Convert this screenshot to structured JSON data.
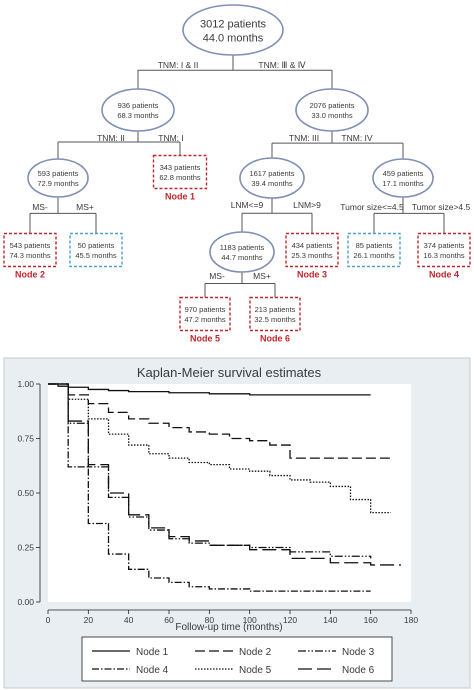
{
  "tree": {
    "nodes": [
      {
        "id": "root",
        "line1": "3012 patients",
        "line2": "44.0 months",
        "shape": "ellipse"
      },
      {
        "id": "n936",
        "line1": "936 patients",
        "line2": "68.3 months",
        "shape": "ellipse"
      },
      {
        "id": "n2076",
        "line1": "2076 patients",
        "line2": "33.0 months",
        "shape": "ellipse"
      },
      {
        "id": "n593",
        "line1": "593 patients",
        "line2": "72.9 months",
        "shape": "ellipse"
      },
      {
        "id": "n343",
        "line1": "343 patients",
        "line2": "62.8 months",
        "shape": "box-red",
        "label": "Node 1"
      },
      {
        "id": "n1617",
        "line1": "1617 patients",
        "line2": "39.4 months",
        "shape": "ellipse"
      },
      {
        "id": "n459",
        "line1": "459 patients",
        "line2": "17.1 months",
        "shape": "ellipse"
      },
      {
        "id": "n543",
        "line1": "543 patients",
        "line2": "74.3 months",
        "shape": "box-red",
        "label": "Node 2"
      },
      {
        "id": "n50",
        "line1": "50 patients",
        "line2": "45.5 months",
        "shape": "box-blue"
      },
      {
        "id": "n1183",
        "line1": "1183 patients",
        "line2": "44.7 months",
        "shape": "ellipse"
      },
      {
        "id": "n434",
        "line1": "434 patients",
        "line2": "25.3 months",
        "shape": "box-red",
        "label": "Node 3"
      },
      {
        "id": "n85",
        "line1": "85 patients",
        "line2": "26.1 months",
        "shape": "box-blue"
      },
      {
        "id": "n374",
        "line1": "374 patients",
        "line2": "16.3 months",
        "shape": "box-red",
        "label": "Node 4"
      },
      {
        "id": "n970",
        "line1": "970 patients",
        "line2": "47.2 months",
        "shape": "box-red",
        "label": "Node 5"
      },
      {
        "id": "n213",
        "line1": "213 patients",
        "line2": "32.5 months",
        "shape": "box-red",
        "label": "Node 6"
      }
    ],
    "edges": [
      {
        "from": "root",
        "left": "n936",
        "right": "n2076",
        "left_label": "TNM: I & II",
        "right_label": "TNM: Ⅲ & Ⅳ"
      },
      {
        "from": "n936",
        "left": "n593",
        "right": "n343",
        "left_label": "TNM: II",
        "right_label": "TNM: I"
      },
      {
        "from": "n2076",
        "left": "n1617",
        "right": "n459",
        "left_label": "TNM: III",
        "right_label": "TNM: IV"
      },
      {
        "from": "n593",
        "left": "n543",
        "right": "n50",
        "left_label": "MS-",
        "right_label": "MS+"
      },
      {
        "from": "n1617",
        "left": "n1183",
        "right": "n434",
        "left_label": "LNM<=9",
        "right_label": "LNM>9"
      },
      {
        "from": "n459",
        "left": "n85",
        "right": "n374",
        "left_label": "Tumor size<=4.5",
        "right_label": "Tumor size>4.5"
      },
      {
        "from": "n1183",
        "left": "n970",
        "right": "n213",
        "left_label": "MS-",
        "right_label": "MS+"
      }
    ],
    "colors": {
      "ellipse": "#7f8fb5",
      "box_red": "#c0272d",
      "box_blue": "#4a9fd4",
      "line": "#555555"
    }
  },
  "chart_data": {
    "type": "line",
    "title": "Kaplan-Meier survival estimates",
    "xlabel": "Follow-up time (months)",
    "ylabel": "",
    "xlim": [
      0,
      180
    ],
    "ylim": [
      0,
      1
    ],
    "xticks": [
      "0",
      "20",
      "40",
      "60",
      "80",
      "100",
      "120",
      "140",
      "160",
      "180"
    ],
    "yticks": [
      "0.00",
      "0.25",
      "0.50",
      "0.75",
      "1.00"
    ],
    "grid": false,
    "legend_position": "bottom",
    "series": [
      {
        "name": "Node 1",
        "dash": "",
        "x": [
          0,
          5,
          10,
          20,
          30,
          40,
          60,
          80,
          100,
          120,
          140,
          160
        ],
        "y": [
          1.0,
          0.99,
          0.985,
          0.975,
          0.97,
          0.965,
          0.96,
          0.955,
          0.95,
          0.95,
          0.95,
          0.95
        ]
      },
      {
        "name": "Node 2",
        "dash": "10,4",
        "x": [
          0,
          10,
          20,
          30,
          40,
          50,
          60,
          70,
          80,
          90,
          100,
          110,
          120,
          130,
          140,
          150,
          160,
          170
        ],
        "y": [
          1.0,
          0.95,
          0.91,
          0.87,
          0.84,
          0.82,
          0.8,
          0.78,
          0.77,
          0.75,
          0.74,
          0.72,
          0.66,
          0.66,
          0.66,
          0.66,
          0.66,
          0.66
        ]
      },
      {
        "name": "Node 3",
        "dash": "8,2,1.5,2,1.5,2",
        "x": [
          0,
          10,
          20,
          30,
          40,
          50,
          60,
          70,
          80,
          100,
          120,
          140,
          160
        ],
        "y": [
          1.0,
          0.82,
          0.62,
          0.48,
          0.39,
          0.33,
          0.29,
          0.27,
          0.26,
          0.25,
          0.23,
          0.21,
          0.2
        ]
      },
      {
        "name": "Node 4",
        "dash": "7,2,1.5,2",
        "x": [
          0,
          10,
          20,
          30,
          40,
          50,
          60,
          70,
          80,
          100,
          120,
          140,
          160
        ],
        "y": [
          1.0,
          0.62,
          0.36,
          0.22,
          0.15,
          0.11,
          0.09,
          0.07,
          0.06,
          0.05,
          0.05,
          0.05,
          0.05
        ]
      },
      {
        "name": "Node 5",
        "dash": "1.5,1.5",
        "x": [
          0,
          10,
          20,
          30,
          40,
          50,
          60,
          70,
          80,
          90,
          100,
          110,
          120,
          130,
          140,
          150,
          160,
          170
        ],
        "y": [
          1.0,
          0.93,
          0.84,
          0.77,
          0.72,
          0.68,
          0.66,
          0.64,
          0.63,
          0.61,
          0.6,
          0.58,
          0.56,
          0.55,
          0.53,
          0.47,
          0.41,
          0.41
        ]
      },
      {
        "name": "Node 6",
        "dash": "14,5",
        "x": [
          0,
          10,
          20,
          30,
          40,
          50,
          60,
          70,
          80,
          100,
          120,
          140,
          160,
          175
        ],
        "y": [
          1.0,
          0.83,
          0.63,
          0.5,
          0.4,
          0.34,
          0.3,
          0.28,
          0.26,
          0.24,
          0.2,
          0.18,
          0.17,
          0.17
        ]
      }
    ]
  }
}
